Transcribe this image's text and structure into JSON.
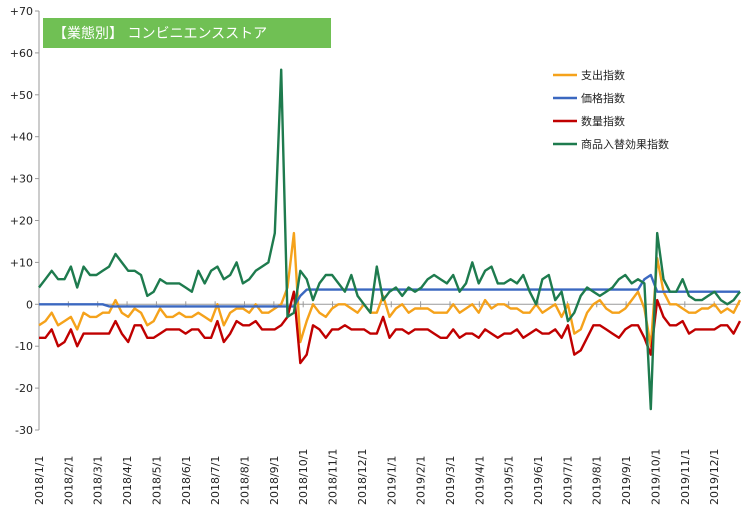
{
  "chart_data": {
    "type": "line",
    "title": "【業態別】 コンビニエンスストア",
    "colors": {
      "title_bg": "#70c054",
      "axis": "#9a9a9a"
    },
    "xlabel": "",
    "ylabel": "",
    "ylim": [
      -30,
      70
    ],
    "yticks": [
      "-30",
      "-20",
      "-10",
      "0",
      "+10",
      "+20",
      "+30",
      "+40",
      "+50",
      "+60",
      "+70"
    ],
    "ytick_values": [
      -30,
      -20,
      -10,
      0,
      10,
      20,
      30,
      40,
      50,
      60,
      70
    ],
    "xtick_labels": [
      "2018/1/1",
      "2018/2/1",
      "2018/3/1",
      "2018/4/1",
      "2018/5/1",
      "2018/6/1",
      "2018/7/1",
      "2018/8/1",
      "2018/9/1",
      "2018/10/1",
      "2018/11/1",
      "2018/12/1",
      "2019/1/1",
      "2019/2/1",
      "2019/3/1",
      "2019/4/1",
      "2019/5/1",
      "2019/6/1",
      "2019/7/1",
      "2019/8/1",
      "2019/9/1",
      "2019/10/1",
      "2019/11/1",
      "2019/12/1"
    ],
    "grid": false,
    "legend_position": "top-right",
    "series": [
      {
        "name": "支出指数",
        "color": "#f5a21b",
        "values": [
          -5,
          -4,
          -2,
          -5,
          -4,
          -3,
          -6,
          -2,
          -3,
          -3,
          -2,
          -2,
          1,
          -2,
          -3,
          -1,
          -2,
          -5,
          -4,
          -1,
          -3,
          -3,
          -2,
          -3,
          -3,
          -2,
          -3,
          -4,
          0,
          -5,
          -2,
          -1,
          -1,
          -2,
          0,
          -2,
          -2,
          -1,
          0,
          4,
          17,
          -9,
          -4,
          0,
          -2,
          -3,
          -1,
          0,
          0,
          -1,
          -2,
          0,
          -2,
          -2,
          2,
          -3,
          -1,
          0,
          -2,
          -1,
          -1,
          -1,
          -2,
          -2,
          -2,
          0,
          -2,
          -1,
          0,
          -2,
          1,
          -1,
          0,
          0,
          -1,
          -1,
          -2,
          -2,
          0,
          -2,
          -1,
          0,
          -3,
          0,
          -7,
          -6,
          -2,
          0,
          1,
          -1,
          -2,
          -2,
          -1,
          1,
          3,
          -1,
          -10,
          11,
          3,
          0,
          0,
          -1,
          -2,
          -2,
          -1,
          -1,
          0,
          -2,
          -1,
          -2,
          1
        ]
      },
      {
        "name": "価格指数",
        "color": "#3b68c0",
        "values": [
          0,
          0,
          0,
          0,
          0,
          0,
          0,
          0,
          0,
          0,
          0,
          -0.5,
          -0.5,
          -0.5,
          -0.5,
          -0.5,
          -0.5,
          -0.5,
          -0.5,
          -0.5,
          -0.5,
          -0.5,
          -0.5,
          -0.5,
          -0.5,
          -0.5,
          -0.5,
          -0.5,
          -0.5,
          -0.5,
          -0.5,
          -0.5,
          -0.5,
          -0.5,
          -0.5,
          -0.5,
          -0.5,
          -0.5,
          -0.5,
          -0.5,
          -0.5,
          2,
          3.5,
          3.5,
          3.5,
          3.5,
          3.5,
          3.5,
          3.5,
          3.5,
          3.5,
          3.5,
          3.5,
          3.5,
          3.5,
          3.5,
          3.5,
          3.5,
          3.5,
          3.5,
          3.5,
          3.5,
          3.5,
          3.5,
          3.5,
          3.5,
          3.5,
          3.5,
          3.5,
          3.5,
          3.5,
          3.5,
          3.5,
          3.5,
          3.5,
          3.5,
          3.5,
          3.5,
          3.5,
          3.5,
          3.5,
          3.5,
          3.5,
          3.5,
          3.5,
          3.5,
          3.5,
          3.5,
          3.5,
          3.5,
          3.5,
          3.5,
          3.5,
          3.5,
          3.5,
          6,
          7,
          3,
          3,
          3,
          3,
          3,
          3,
          3,
          3,
          3,
          3,
          3,
          3,
          3,
          3
        ]
      },
      {
        "name": "数量指数",
        "color": "#c00000",
        "values": [
          -8,
          -8,
          -6,
          -10,
          -9,
          -6,
          -10,
          -7,
          -7,
          -7,
          -7,
          -7,
          -4,
          -7,
          -9,
          -5,
          -5,
          -8,
          -8,
          -7,
          -6,
          -6,
          -6,
          -7,
          -6,
          -6,
          -8,
          -8,
          -4,
          -9,
          -7,
          -4,
          -5,
          -5,
          -4,
          -6,
          -6,
          -6,
          -5,
          -3,
          3,
          -14,
          -12,
          -5,
          -6,
          -8,
          -6,
          -6,
          -5,
          -6,
          -6,
          -6,
          -7,
          -7,
          -3,
          -8,
          -6,
          -6,
          -7,
          -6,
          -6,
          -6,
          -7,
          -8,
          -8,
          -6,
          -8,
          -7,
          -7,
          -8,
          -6,
          -7,
          -8,
          -7,
          -7,
          -6,
          -8,
          -7,
          -6,
          -7,
          -7,
          -6,
          -8,
          -5,
          -12,
          -11,
          -8,
          -5,
          -5,
          -6,
          -7,
          -8,
          -6,
          -5,
          -5,
          -8,
          -12,
          1,
          -3,
          -5,
          -5,
          -4,
          -7,
          -6,
          -6,
          -6,
          -6,
          -5,
          -5,
          -7,
          -4
        ]
      },
      {
        "name": "商品入替効果指数",
        "color": "#1e7b4e",
        "values": [
          4,
          6,
          8,
          6,
          6,
          9,
          4,
          9,
          7,
          7,
          8,
          9,
          12,
          10,
          8,
          8,
          7,
          2,
          3,
          6,
          5,
          5,
          5,
          4,
          3,
          8,
          5,
          8,
          9,
          6,
          7,
          10,
          5,
          6,
          8,
          9,
          10,
          17,
          56,
          -3,
          -2,
          8,
          6,
          1,
          5,
          7,
          7,
          5,
          3,
          7,
          2,
          0,
          -2,
          9,
          1,
          3,
          4,
          2,
          4,
          3,
          4,
          6,
          7,
          6,
          5,
          7,
          3,
          5,
          10,
          5,
          8,
          9,
          5,
          5,
          6,
          5,
          7,
          3,
          0,
          6,
          7,
          1,
          3,
          -4,
          -2,
          2,
          4,
          3,
          2,
          3,
          4,
          6,
          7,
          5,
          6,
          5,
          -25,
          17,
          6,
          3,
          3,
          6,
          2,
          1,
          1,
          2,
          3,
          1,
          0,
          1,
          3
        ]
      }
    ]
  }
}
